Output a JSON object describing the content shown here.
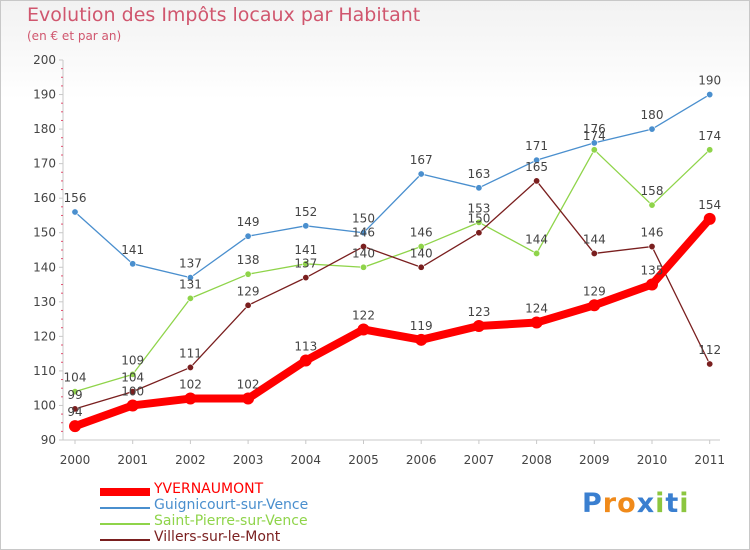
{
  "chart_data": {
    "type": "line",
    "title": "Evolution des Impôts locaux par Habitant",
    "subtitle": "(en € et par an)",
    "xlabel": "",
    "ylabel": "",
    "ylim": [
      90,
      200
    ],
    "yticks": [
      "90",
      "100",
      "110",
      "120",
      "130",
      "140",
      "150",
      "160",
      "170",
      "180",
      "190",
      "200"
    ],
    "categories": [
      "2000",
      "2001",
      "2002",
      "2003",
      "2004",
      "2005",
      "2006",
      "2007",
      "2008",
      "2009",
      "2010",
      "2011"
    ],
    "series": [
      {
        "name": "YVERNAUMONT",
        "color": "#ff0000",
        "labels": [
          "94",
          "100",
          "102",
          "102",
          "113",
          "122",
          "119",
          "123",
          "124",
          "129",
          "135",
          "154"
        ],
        "values": [
          94,
          100,
          102,
          102,
          113,
          122,
          119,
          123,
          124,
          129,
          135,
          154
        ]
      },
      {
        "name": "Guignicourt-sur-Vence",
        "color": "#4a8fce",
        "labels": [
          "156",
          "141",
          "137",
          "149",
          "152",
          "150",
          "167",
          "163",
          "171",
          "176",
          "180",
          "190"
        ],
        "values": [
          156,
          141,
          137,
          149,
          152,
          150,
          167,
          163,
          171,
          176,
          180,
          190
        ]
      },
      {
        "name": "Saint-Pierre-sur-Vence",
        "color": "#8fd44a",
        "labels": [
          "104",
          "109",
          "131",
          "138",
          "141",
          "140",
          "146",
          "153",
          "144",
          "174",
          "158",
          "174"
        ],
        "values": [
          104,
          109,
          131,
          138,
          141,
          140,
          146,
          153,
          144,
          174,
          158,
          174
        ]
      },
      {
        "name": "Villers-sur-le-Mont",
        "color": "#7a1f1f",
        "labels": [
          "99",
          "104",
          "111",
          "129",
          "137",
          "146",
          "140",
          "150",
          "165",
          "144",
          "146",
          "112"
        ],
        "values": [
          99,
          104,
          111,
          129,
          137,
          146,
          140,
          150,
          165,
          144,
          146,
          112
        ]
      }
    ],
    "grid": false,
    "legend_position": "bottom-left"
  },
  "logo": {
    "text": "Proxiti",
    "letters": [
      "P",
      "r",
      "o",
      "x",
      "i",
      "t",
      "i"
    ],
    "colors": [
      "#3a7fd0",
      "#f08a1a",
      "#f08a1a",
      "#3a7fd0",
      "#8cc63f",
      "#3a7fd0",
      "#8cc63f"
    ]
  }
}
